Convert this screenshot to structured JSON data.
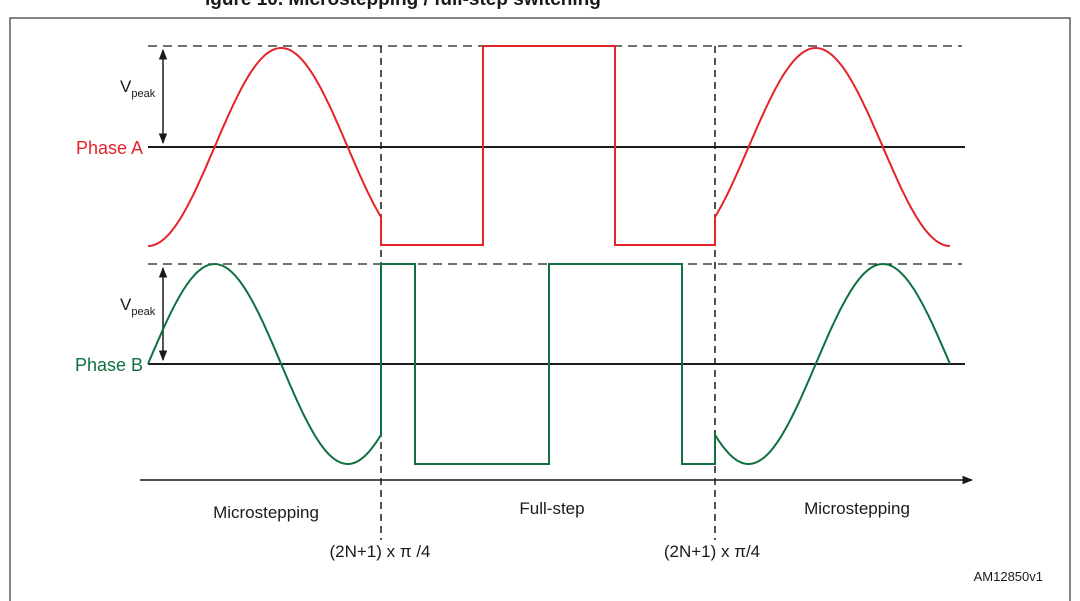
{
  "caption_fragment": "igure 10. Microstepping / full-step switching",
  "colors": {
    "phase_a": "#e3242b",
    "phase_b": "#107040",
    "ink": "#1a1a1a"
  },
  "labels": {
    "v": "V",
    "peak": "peak",
    "phase_a": "Phase A",
    "phase_b": "Phase B",
    "mode_left": "Microstepping",
    "mode_mid": "Full-step",
    "mode_right": "Microstepping",
    "switch_left": "(2N+1) x π /4",
    "switch_right": "(2N+1) x π/4",
    "ref": "AM12850v1"
  }
}
